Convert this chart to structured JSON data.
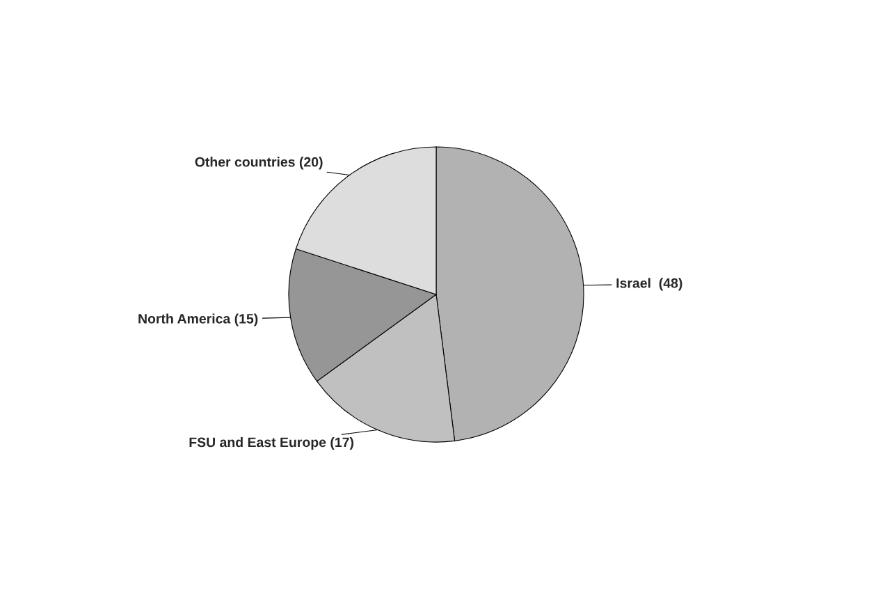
{
  "chart_data": {
    "type": "pie",
    "categories": [
      "Israel  (48)",
      "FSU and East Europe (17)",
      "North America (15)",
      "Other countries (20)"
    ],
    "values": [
      48,
      17,
      15,
      20
    ],
    "colors": [
      "#b2b2b2",
      "#c0c0c0",
      "#969696",
      "#dddddd"
    ]
  }
}
